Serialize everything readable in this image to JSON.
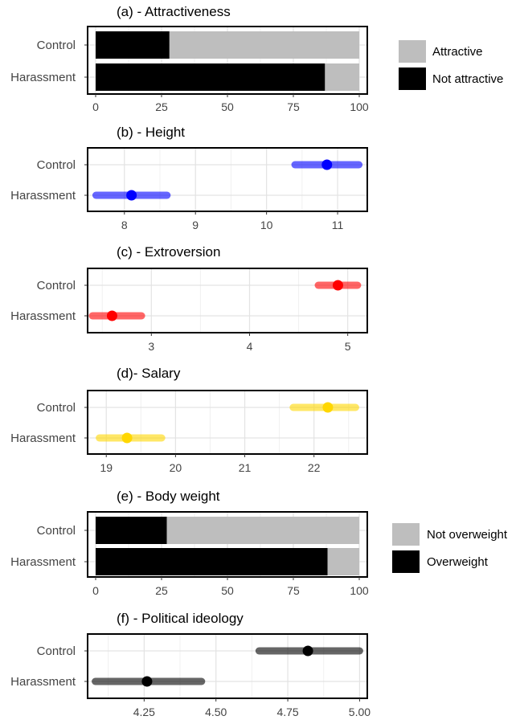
{
  "chart_data": [
    {
      "type": "bar",
      "stacked": "horizontal",
      "title": "(a) - Attractiveness",
      "categories": [
        "Control",
        "Harassment"
      ],
      "series": [
        {
          "name": "Not attractive",
          "color": "#000000",
          "values": [
            28,
            87
          ]
        },
        {
          "name": "Attractive",
          "color": "#bebebe",
          "values": [
            72,
            13
          ]
        }
      ],
      "xlim": [
        0,
        100
      ],
      "ticks": [
        0,
        25,
        50,
        75,
        100
      ],
      "grid": true,
      "legend": "right",
      "legend_entries": [
        {
          "label": "Attractive",
          "color": "#bebebe"
        },
        {
          "label": "Not attractive",
          "color": "#000000"
        }
      ]
    },
    {
      "type": "pointrange",
      "title": "(b) - Height",
      "categories": [
        "Control",
        "Harassment"
      ],
      "color": "#0000ff",
      "points": [
        {
          "category": "Control",
          "estimate": 10.85,
          "low": 10.4,
          "high": 11.3
        },
        {
          "category": "Harassment",
          "estimate": 8.1,
          "low": 7.6,
          "high": 8.6
        }
      ],
      "xlim": [
        7.55,
        11.35
      ],
      "ticks": [
        8,
        9,
        10,
        11
      ],
      "grid": true
    },
    {
      "type": "pointrange",
      "title": "(c) - Extroversion",
      "categories": [
        "Control",
        "Harassment"
      ],
      "color": "#ff0000",
      "points": [
        {
          "category": "Control",
          "estimate": 4.9,
          "low": 4.7,
          "high": 5.1
        },
        {
          "category": "Harassment",
          "estimate": 2.6,
          "low": 2.4,
          "high": 2.9
        }
      ],
      "xlim": [
        2.4,
        5.15
      ],
      "ticks": [
        3,
        4,
        5
      ],
      "grid": true
    },
    {
      "type": "pointrange",
      "title": "(d)- Salary",
      "categories": [
        "Control",
        "Harassment"
      ],
      "color": "#ffd700",
      "points": [
        {
          "category": "Control",
          "estimate": 22.2,
          "low": 21.7,
          "high": 22.6
        },
        {
          "category": "Harassment",
          "estimate": 19.3,
          "low": 18.9,
          "high": 19.8
        }
      ],
      "xlim": [
        18.8,
        22.7
      ],
      "ticks": [
        19,
        20,
        21,
        22
      ],
      "grid": true
    },
    {
      "type": "bar",
      "stacked": "horizontal",
      "title": "(e) - Body weight",
      "categories": [
        "Control",
        "Harassment"
      ],
      "series": [
        {
          "name": "Overweight",
          "color": "#000000",
          "values": [
            27,
            88
          ]
        },
        {
          "name": "Not overweight",
          "color": "#bebebe",
          "values": [
            73,
            12
          ]
        }
      ],
      "xlim": [
        0,
        100
      ],
      "ticks": [
        0,
        25,
        50,
        75,
        100
      ],
      "grid": true,
      "legend": "right",
      "legend_entries": [
        {
          "label": "Not overweight",
          "color": "#bebebe"
        },
        {
          "label": "Overweight",
          "color": "#000000"
        }
      ]
    },
    {
      "type": "pointrange",
      "title": "(f) - Political ideology",
      "categories": [
        "Control",
        "Harassment"
      ],
      "color": "#000000",
      "points": [
        {
          "category": "Control",
          "estimate": 4.82,
          "low": 4.65,
          "high": 5.0
        },
        {
          "category": "Harassment",
          "estimate": 4.26,
          "low": 4.08,
          "high": 4.45
        }
      ],
      "xlim": [
        4.07,
        5.01
      ],
      "ticks": [
        4.25,
        4.5,
        4.75,
        5.0
      ],
      "tick_labels": [
        "4.25",
        "4.50",
        "4.75",
        "5.00"
      ],
      "grid": true
    }
  ]
}
